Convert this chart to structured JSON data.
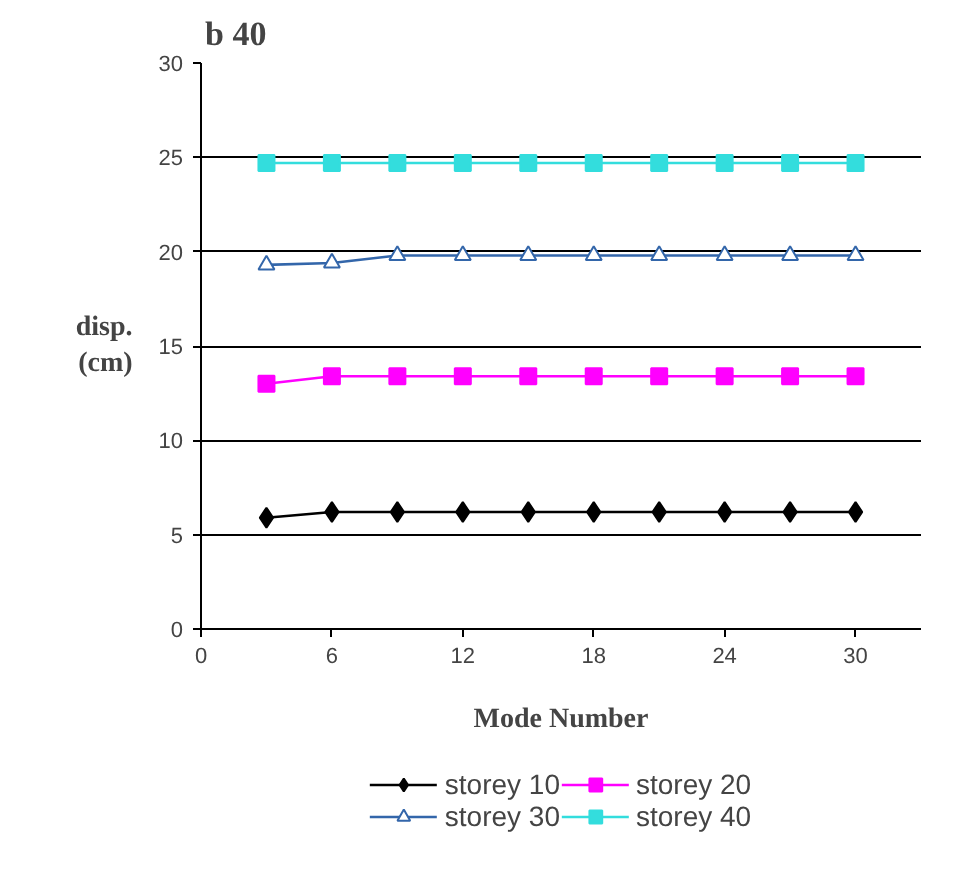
{
  "chart_data": {
    "type": "line",
    "title": "b 40",
    "xlabel": "Mode Number",
    "ylabel": "disp.\n(cm)",
    "x": [
      3,
      6,
      9,
      12,
      15,
      18,
      21,
      24,
      27,
      30
    ],
    "series": [
      {
        "name": "storey 10",
        "color": "#000000",
        "marker": "diamond",
        "values": [
          5.9,
          6.2,
          6.2,
          6.2,
          6.2,
          6.2,
          6.2,
          6.2,
          6.2,
          6.2
        ]
      },
      {
        "name": "storey 20",
        "color": "#ff00ff",
        "marker": "square",
        "values": [
          13.0,
          13.4,
          13.4,
          13.4,
          13.4,
          13.4,
          13.4,
          13.4,
          13.4,
          13.4
        ]
      },
      {
        "name": "storey 30",
        "color": "#3366aa",
        "marker": "triangle",
        "values": [
          19.3,
          19.4,
          19.8,
          19.8,
          19.8,
          19.8,
          19.8,
          19.8,
          19.8,
          19.8
        ]
      },
      {
        "name": "storey 40",
        "color": "#33dddd",
        "marker": "square",
        "values": [
          24.7,
          24.7,
          24.7,
          24.7,
          24.7,
          24.7,
          24.7,
          24.7,
          24.7,
          24.7
        ]
      }
    ],
    "xlim": [
      0,
      33
    ],
    "xticks": [
      0,
      6,
      12,
      18,
      24,
      30
    ],
    "ylim": [
      0,
      30
    ],
    "yticks": [
      0,
      5,
      10,
      15,
      20,
      25,
      30
    ],
    "grid": "y",
    "legend": "bottom",
    "line_style": "solid"
  }
}
